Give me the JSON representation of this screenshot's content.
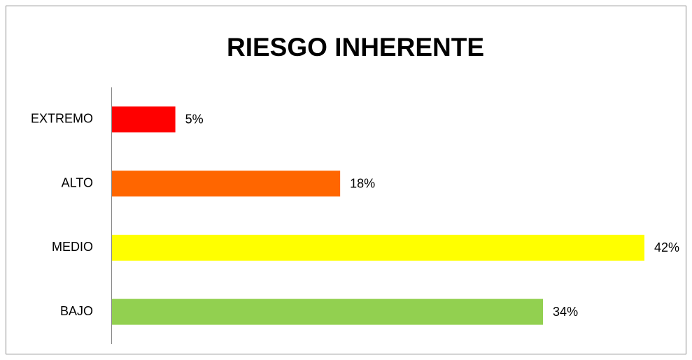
{
  "chart_data": {
    "type": "bar",
    "orientation": "horizontal",
    "title": "RIESGO INHERENTE",
    "categories": [
      "EXTREMO",
      "ALTO",
      "MEDIO",
      "BAJO"
    ],
    "values": [
      5,
      18,
      42,
      34
    ],
    "value_labels": [
      "5%",
      "18%",
      "42%",
      "34%"
    ],
    "colors": [
      "#ff0000",
      "#ff6600",
      "#ffff00",
      "#92d050"
    ]
  }
}
